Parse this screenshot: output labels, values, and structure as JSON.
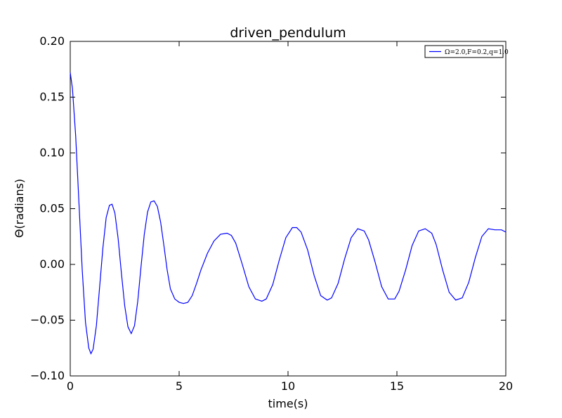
{
  "chart_data": {
    "type": "line",
    "title": "driven_pendulum",
    "xlabel": "time(s)",
    "ylabel": "Θ(radians)",
    "xlim": [
      0,
      20
    ],
    "ylim": [
      -0.1,
      0.2
    ],
    "x_ticks": [
      0,
      5,
      10,
      15,
      20
    ],
    "x_tick_labels": [
      "0",
      "5",
      "10",
      "15",
      "20"
    ],
    "y_ticks": [
      -0.1,
      -0.05,
      0.0,
      0.05,
      0.1,
      0.15,
      0.2
    ],
    "y_tick_labels": [
      "−0.10",
      "−0.05",
      "0.00",
      "0.05",
      "0.10",
      "0.15",
      "0.20"
    ],
    "grid": false,
    "legend_position": "top-right",
    "series": [
      {
        "name": "Ω=2.0,F=0.2,q=1.0",
        "color": "#0000ff",
        "x": [
          0,
          0.1,
          0.25,
          0.4,
          0.55,
          0.7,
          0.85,
          0.95,
          1.05,
          1.2,
          1.35,
          1.5,
          1.65,
          1.8,
          1.92,
          2.05,
          2.2,
          2.35,
          2.5,
          2.65,
          2.8,
          2.95,
          3.1,
          3.25,
          3.4,
          3.55,
          3.7,
          3.85,
          4.0,
          4.15,
          4.3,
          4.45,
          4.6,
          4.8,
          5.0,
          5.2,
          5.4,
          5.6,
          5.8,
          6.0,
          6.3,
          6.6,
          6.9,
          7.2,
          7.4,
          7.6,
          7.9,
          8.2,
          8.5,
          8.8,
          9.0,
          9.3,
          9.6,
          9.9,
          10.2,
          10.4,
          10.6,
          10.9,
          11.2,
          11.5,
          11.8,
          12.0,
          12.3,
          12.6,
          12.9,
          13.2,
          13.5,
          13.7,
          14.0,
          14.3,
          14.6,
          14.9,
          15.1,
          15.4,
          15.7,
          16.0,
          16.3,
          16.6,
          16.8,
          17.1,
          17.4,
          17.7,
          18.0,
          18.3,
          18.6,
          18.9,
          19.2,
          19.5,
          19.8,
          20.0
        ],
        "y": [
          0.172,
          0.158,
          0.115,
          0.055,
          -0.005,
          -0.052,
          -0.075,
          -0.08,
          -0.076,
          -0.055,
          -0.02,
          0.015,
          0.042,
          0.053,
          0.054,
          0.046,
          0.023,
          -0.008,
          -0.037,
          -0.056,
          -0.062,
          -0.055,
          -0.033,
          -0.002,
          0.027,
          0.047,
          0.056,
          0.057,
          0.052,
          0.038,
          0.017,
          -0.005,
          -0.022,
          -0.031,
          -0.034,
          -0.035,
          -0.034,
          -0.028,
          -0.017,
          -0.005,
          0.01,
          0.021,
          0.027,
          0.028,
          0.026,
          0.019,
          0.0,
          -0.02,
          -0.031,
          -0.033,
          -0.031,
          -0.018,
          0.004,
          0.024,
          0.033,
          0.033,
          0.029,
          0.013,
          -0.01,
          -0.028,
          -0.032,
          -0.03,
          -0.017,
          0.005,
          0.024,
          0.032,
          0.03,
          0.022,
          0.002,
          -0.02,
          -0.031,
          -0.031,
          -0.024,
          -0.005,
          0.017,
          0.03,
          0.032,
          0.028,
          0.018,
          -0.005,
          -0.025,
          -0.032,
          -0.03,
          -0.016,
          0.006,
          0.025,
          0.032,
          0.031,
          0.031,
          0.029
        ]
      }
    ]
  }
}
